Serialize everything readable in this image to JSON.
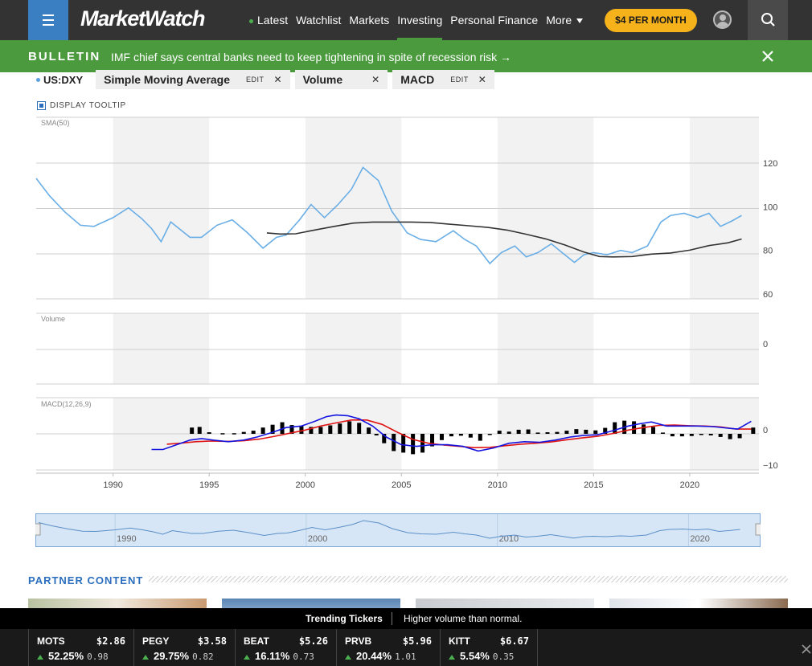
{
  "header": {
    "logo": "MarketWatch",
    "nav": [
      "Latest",
      "Watchlist",
      "Markets",
      "Investing",
      "Personal Finance",
      "More"
    ],
    "active_nav": "Investing",
    "subscribe": "$4 PER MONTH"
  },
  "bulletin": {
    "tag": "BULLETIN",
    "message": "IMF chief says central banks need to keep tightening in spite of recession risk →"
  },
  "indicators": {
    "symbol": "US:DXY",
    "chips": [
      {
        "label": "Simple Moving Average",
        "edit": "EDIT"
      },
      {
        "label": "Volume",
        "edit": ""
      },
      {
        "label": "MACD",
        "edit": "EDIT"
      }
    ],
    "tooltip_label": "DISPLAY TOOLTIP"
  },
  "chart_data": [
    {
      "type": "line",
      "label": "SMA(50)",
      "x_ticks": [
        1990,
        1995,
        2000,
        2005,
        2010,
        2015,
        2020
      ],
      "ylim": [
        60,
        120
      ],
      "y_ticks": [
        120,
        100,
        80,
        60
      ],
      "series": [
        {
          "name": "US:DXY",
          "color": "#6aaee6",
          "x": [
            1986,
            1986.7,
            1987.5,
            1988.3,
            1989,
            1990,
            1990.8,
            1991.5,
            1992,
            1992.5,
            1993,
            1994,
            1994.6,
            1995.4,
            1996.2,
            1997,
            1997.8,
            1998.5,
            1999,
            1999.7,
            2000.3,
            2001,
            2001.7,
            2002.4,
            2003,
            2003.8,
            2004.5,
            2005.3,
            2006,
            2006.8,
            2007.7,
            2008.3,
            2008.9,
            2009.6,
            2010.2,
            2010.9,
            2011.5,
            2012.1,
            2012.8,
            2013.5,
            2014,
            2014.5,
            2015,
            2015.7,
            2016.4,
            2017,
            2017.8,
            2018.5,
            2019,
            2019.7,
            2020.4,
            2021,
            2021.6,
            2022.2,
            2022.7
          ],
          "y": [
            113,
            105,
            97.5,
            91.5,
            91,
            95,
            99.5,
            94.5,
            90,
            84,
            93,
            86,
            86,
            91.5,
            94,
            88,
            81,
            86,
            87,
            94,
            101,
            95,
            101,
            108,
            118,
            112,
            98,
            88,
            85,
            84,
            89,
            85,
            82,
            74,
            79,
            82,
            77,
            79,
            83,
            78,
            74.5,
            78,
            79,
            78,
            80,
            79,
            82,
            93,
            96,
            97,
            95,
            97,
            91,
            93.5,
            96
          ]
        }
      ]
    },
    {
      "type": "bar",
      "label": "Volume",
      "y_ticks": [
        0
      ],
      "values": []
    },
    {
      "type": "bar",
      "label": "MACD(12,26,9)",
      "y_ticks": [
        0,
        -10
      ],
      "ylim": [
        -10.5,
        9.5
      ]
    }
  ],
  "navigator": {
    "x_ticks": [
      1990,
      2000,
      2010,
      2020
    ]
  },
  "partner": {
    "title": "PARTNER CONTENT"
  },
  "trending": {
    "title": "Trending Tickers",
    "subtitle": "Higher volume than normal.",
    "tickers": [
      {
        "symbol": "MOTS",
        "price": "$2.86",
        "pct": "52.25%",
        "change": "0.98"
      },
      {
        "symbol": "PEGY",
        "price": "$3.58",
        "pct": "29.75%",
        "change": "0.82"
      },
      {
        "symbol": "BEAT",
        "price": "$5.26",
        "pct": "16.11%",
        "change": "0.73"
      },
      {
        "symbol": "PRVB",
        "price": "$5.96",
        "pct": "20.44%",
        "change": "1.01"
      },
      {
        "symbol": "KITT",
        "price": "$6.67",
        "pct": "5.54%",
        "change": "0.35"
      }
    ]
  },
  "colors": {
    "brand": "#333333",
    "accent": "#4b9a3e",
    "link": "#2a6ebd",
    "cta": "#f6b21b",
    "sma": "#333333",
    "macd": "#1414e0",
    "signal": "#e01414"
  }
}
